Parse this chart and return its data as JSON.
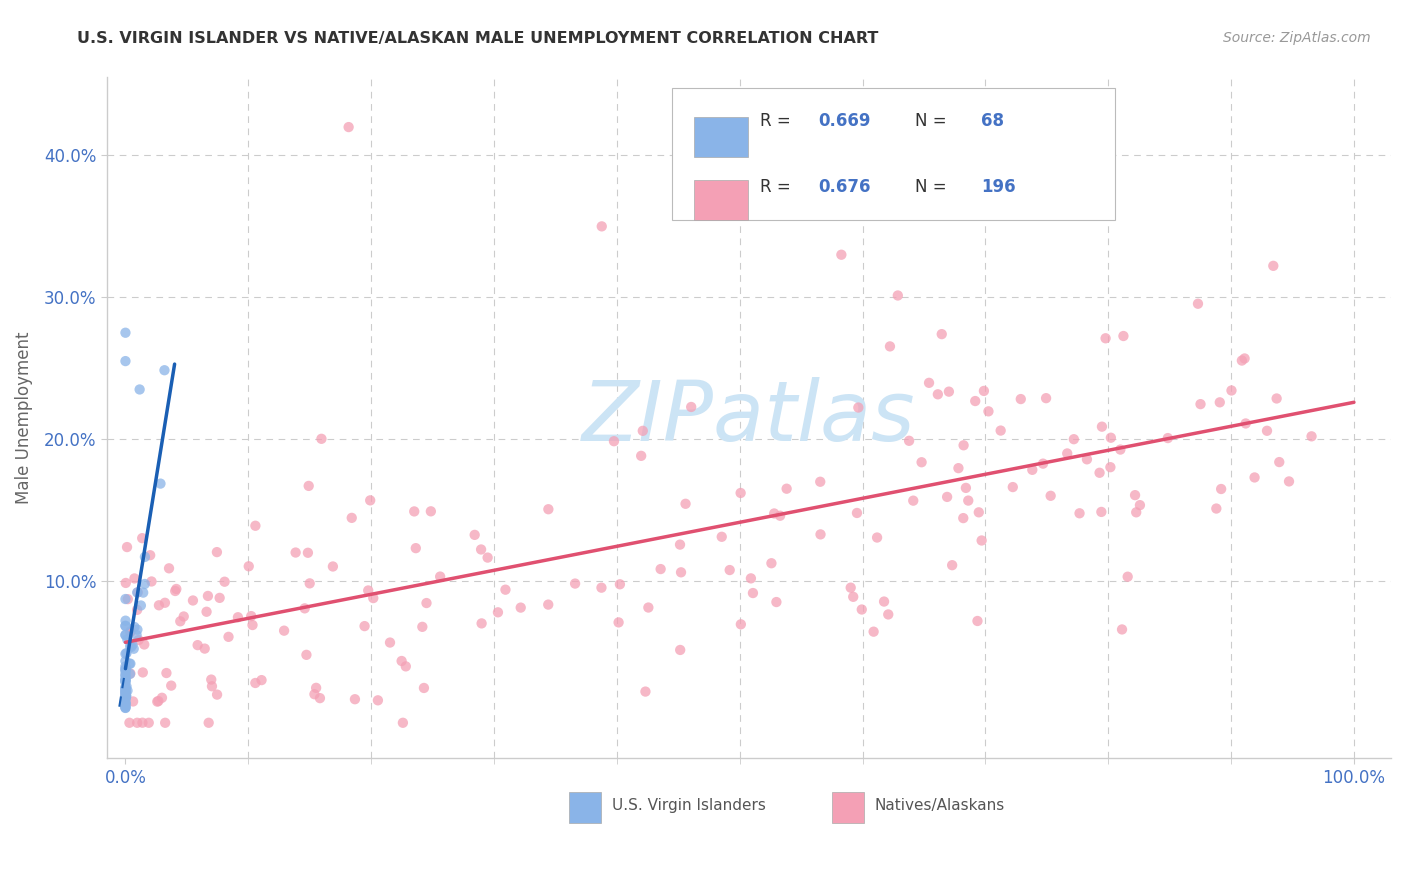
{
  "title": "U.S. VIRGIN ISLANDER VS NATIVE/ALASKAN MALE UNEMPLOYMENT CORRELATION CHART",
  "source": "Source: ZipAtlas.com",
  "ylabel": "Male Unemployment",
  "color_blue": "#8ab4e8",
  "color_pink": "#f4a0b5",
  "color_blue_line": "#1a5fb4",
  "color_pink_line": "#e05070",
  "color_grid": "#cccccc",
  "color_axis": "#cccccc",
  "color_tick": "#4472c4",
  "color_ylabel": "#666666",
  "background_color": "#ffffff",
  "watermark_color": "#cce4f5",
  "legend_r1": "0.669",
  "legend_n1": "68",
  "legend_r2": "0.676",
  "legend_n2": "196",
  "blue_seed": 12,
  "pink_seed": 99
}
